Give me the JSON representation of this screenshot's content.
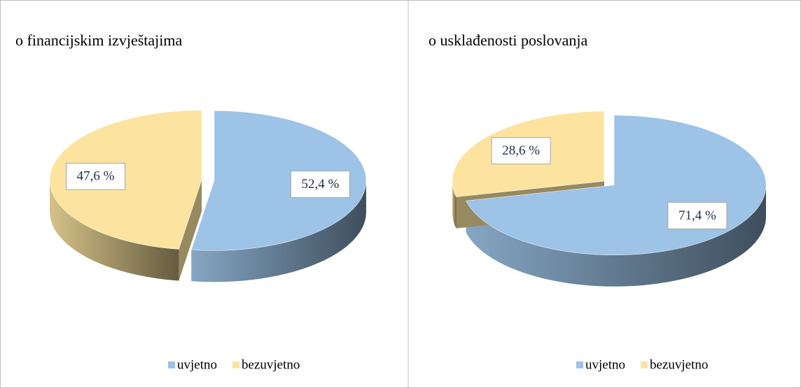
{
  "chart_data": [
    {
      "type": "pie",
      "title": "o financijskim izvještajima",
      "categories": [
        "uvjetno",
        "bezuvjetno"
      ],
      "values": [
        52.4,
        47.6
      ],
      "value_labels": [
        "52,4 %",
        "47,6 %"
      ],
      "colors": [
        "#9dc3e6",
        "#fce4a0"
      ],
      "legend": "bottom"
    },
    {
      "type": "pie",
      "title": "o usklađenosti poslovanja",
      "categories": [
        "uvjetno",
        "bezuvjetno"
      ],
      "values": [
        71.4,
        28.6
      ],
      "value_labels": [
        "71,4 %",
        "28,6 %"
      ],
      "colors": [
        "#9dc3e6",
        "#fce4a0"
      ],
      "legend": "bottom"
    }
  ]
}
